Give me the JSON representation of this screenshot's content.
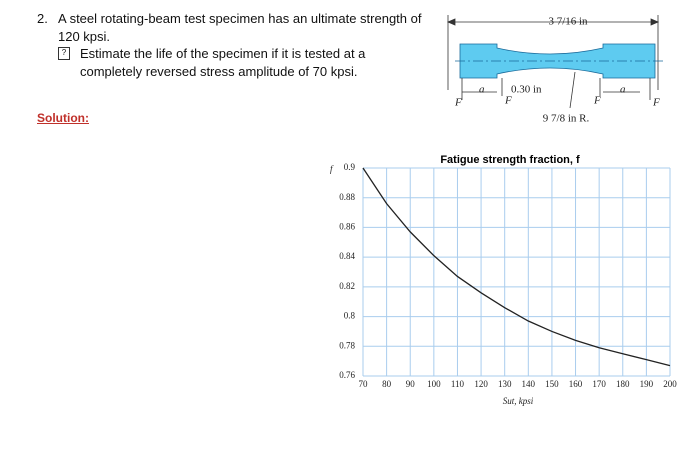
{
  "problem": {
    "number": "2.",
    "statement": "A steel rotating-beam test specimen has an ultimate strength of 120 kpsi.",
    "task": "Estimate the life of the specimen if it is tested at a completely reversed stress amplitude of 70 kpsi.",
    "solution_label": "Solution:"
  },
  "diagram": {
    "length": "3 7/16 in",
    "diameter": "0.30 in",
    "radius": "9 7/8 in R.",
    "force": "F",
    "distance": "a"
  },
  "chart_data": {
    "type": "line",
    "title": "Fatigue strength fraction, f",
    "ylabel": "f",
    "xlabel": "Sut, kpsi",
    "x": [
      70,
      80,
      90,
      100,
      110,
      120,
      130,
      140,
      150,
      160,
      170,
      180,
      190,
      200
    ],
    "values": [
      0.9,
      0.876,
      0.857,
      0.841,
      0.827,
      0.816,
      0.806,
      0.797,
      0.79,
      0.784,
      0.779,
      0.775,
      0.771,
      0.767
    ],
    "color": "#222222",
    "xlim": [
      70,
      200
    ],
    "ylim": [
      0.76,
      0.9
    ],
    "xticks": [
      70,
      80,
      90,
      100,
      110,
      120,
      130,
      140,
      150,
      160,
      170,
      180,
      190,
      200
    ],
    "yticks": [
      0.76,
      0.78,
      0.8,
      0.82,
      0.84,
      0.86,
      0.88,
      0.9
    ],
    "grid": true
  }
}
